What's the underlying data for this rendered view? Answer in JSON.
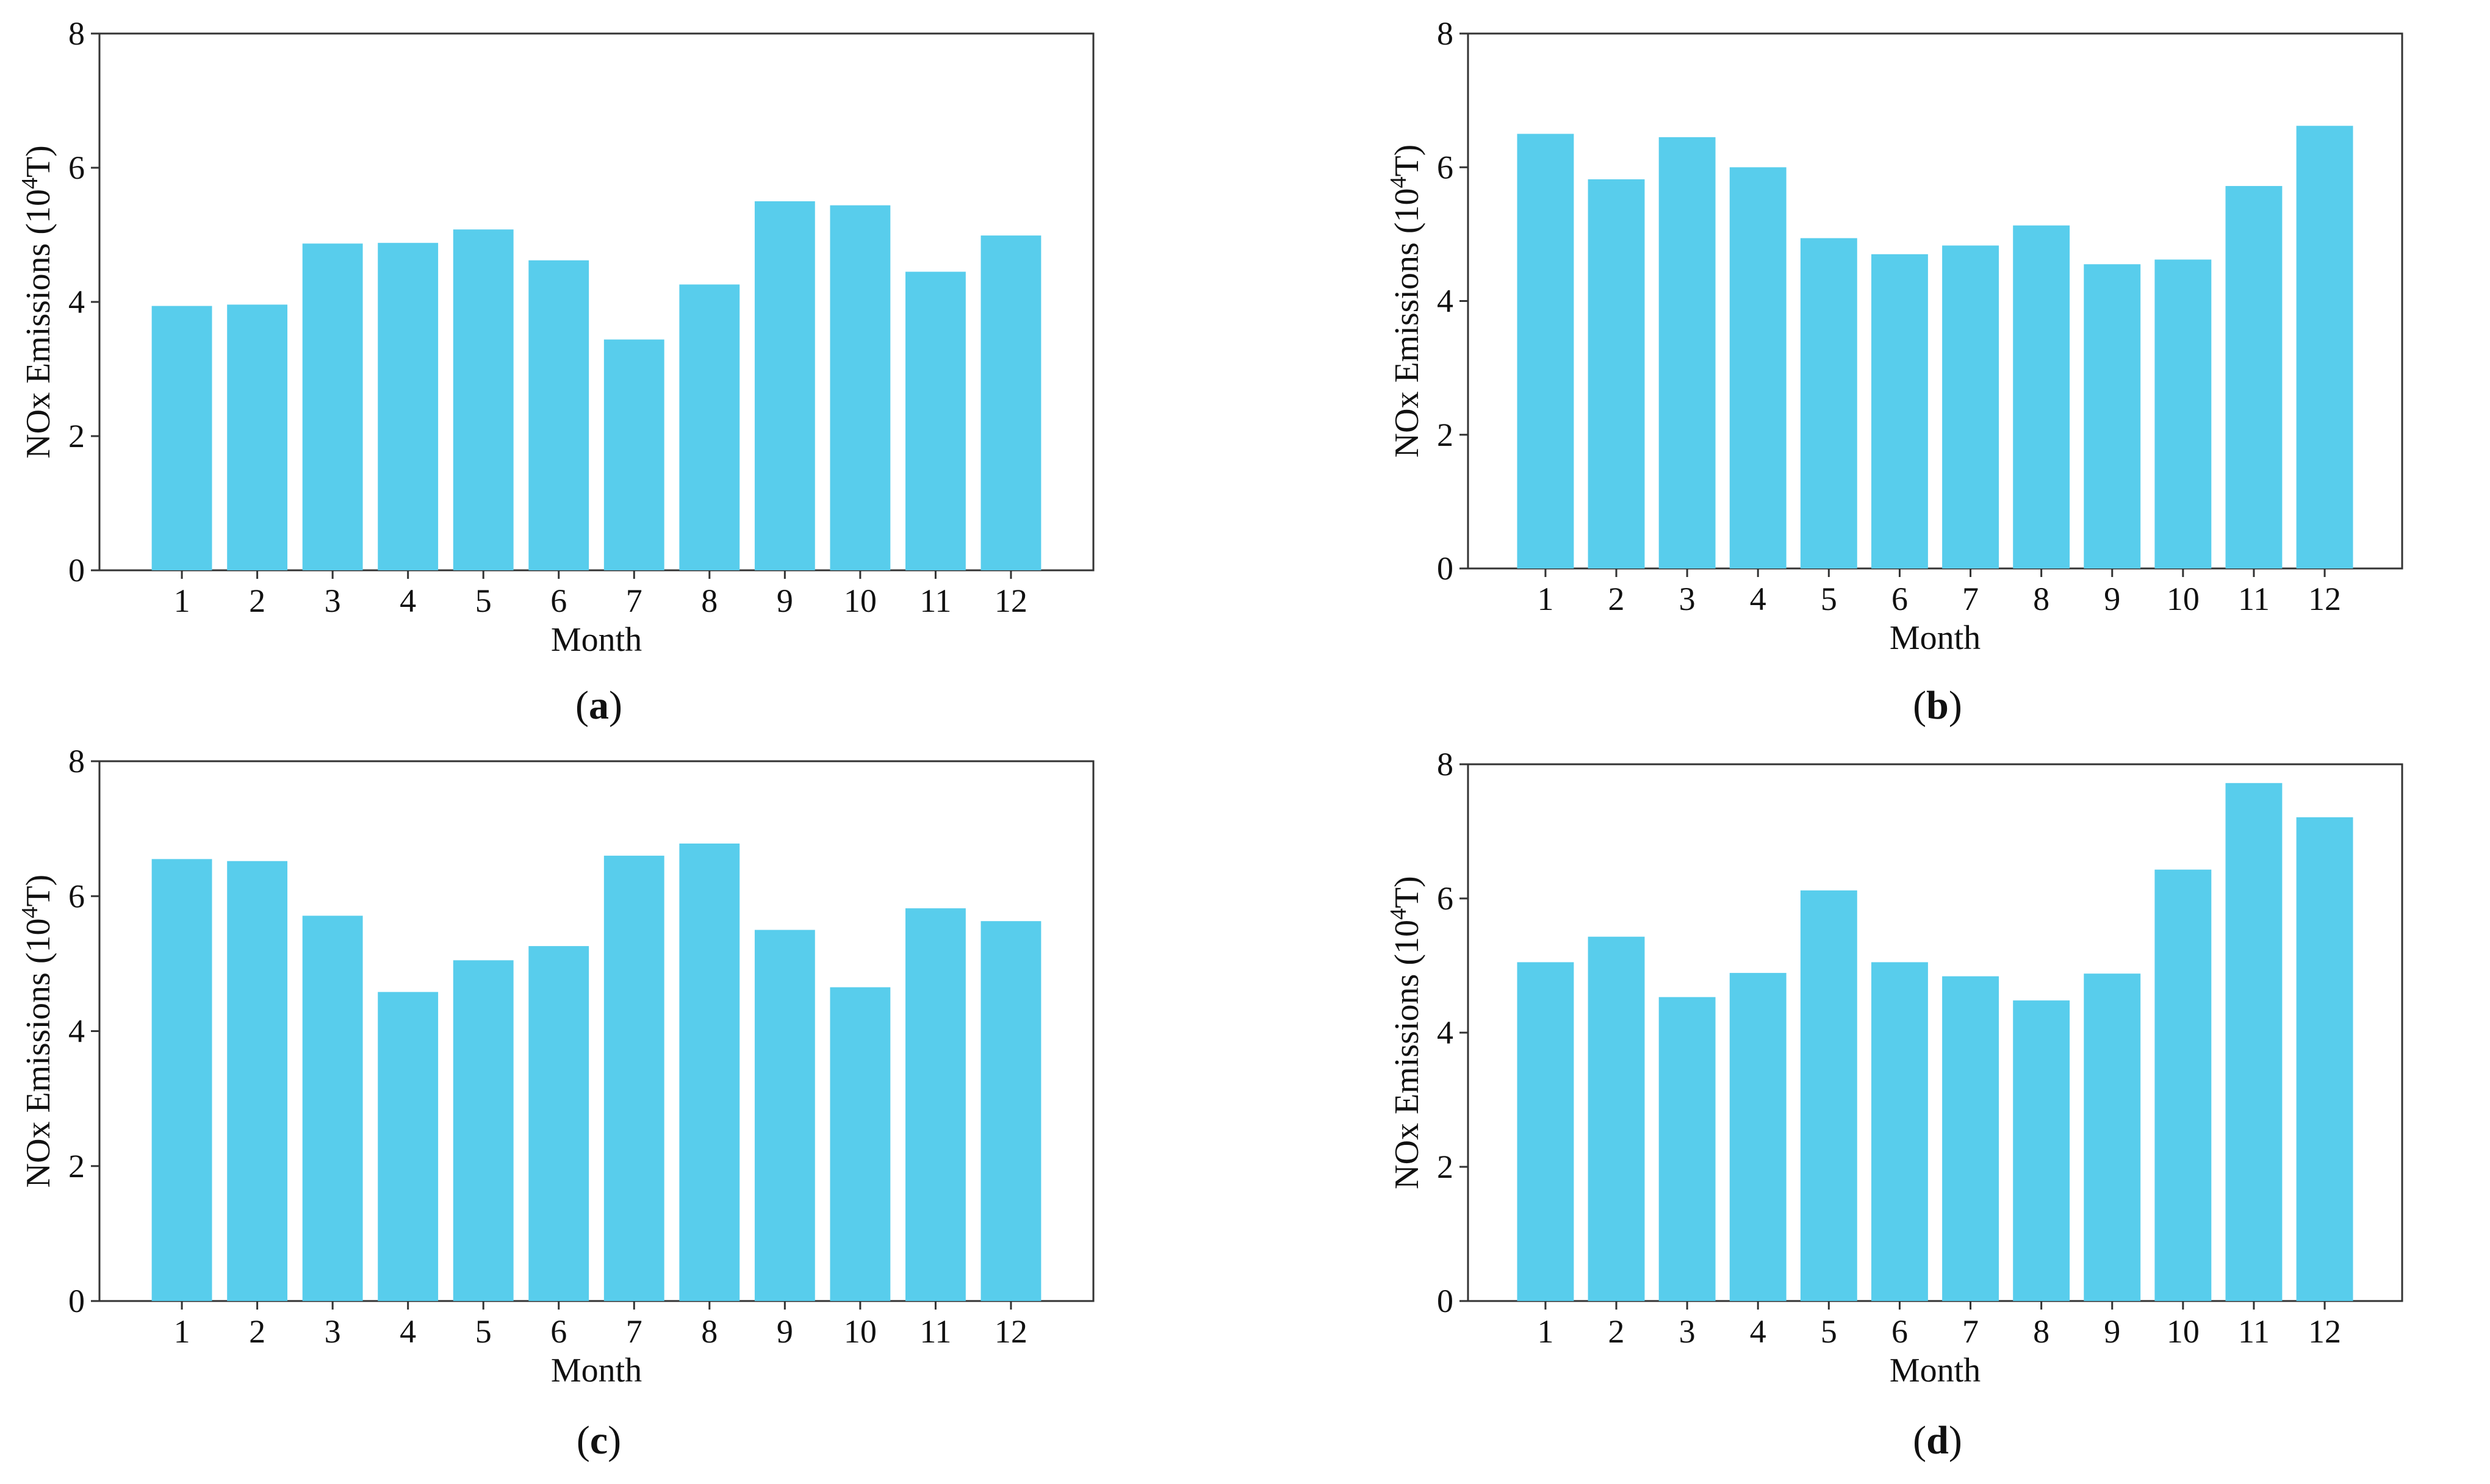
{
  "figure": {
    "bar_color": "#58cdec"
  },
  "chart_data": [
    {
      "type": "bar",
      "label": "a",
      "xlabel": "Month",
      "ylabel_prefix": "NOx Emissions  (10",
      "ylabel_exponent": "4",
      "ylabel_suffix": "T)",
      "ylim": [
        0,
        8
      ],
      "yticks": [
        0,
        2,
        4,
        6,
        8
      ],
      "categories": [
        "1",
        "2",
        "3",
        "4",
        "5",
        "6",
        "7",
        "8",
        "9",
        "10",
        "11",
        "12"
      ],
      "values": [
        3.94,
        3.96,
        4.87,
        4.88,
        5.08,
        4.62,
        3.44,
        4.26,
        5.5,
        5.44,
        4.45,
        4.99
      ]
    },
    {
      "type": "bar",
      "label": "b",
      "xlabel": "Month",
      "ylabel_prefix": "NOx Emissions  (10",
      "ylabel_exponent": "4",
      "ylabel_suffix": "T)",
      "ylim": [
        0,
        8
      ],
      "yticks": [
        0,
        2,
        4,
        6,
        8
      ],
      "categories": [
        "1",
        "2",
        "3",
        "4",
        "5",
        "6",
        "7",
        "8",
        "9",
        "10",
        "11",
        "12"
      ],
      "values": [
        6.5,
        5.82,
        6.45,
        6.0,
        4.94,
        4.7,
        4.83,
        5.13,
        4.55,
        4.62,
        5.72,
        6.62
      ]
    },
    {
      "type": "bar",
      "label": "c",
      "xlabel": "Month",
      "ylabel_prefix": "NOx Emissions  (10",
      "ylabel_exponent": "4",
      "ylabel_suffix": "T)",
      "ylim": [
        0,
        8
      ],
      "yticks": [
        0,
        2,
        4,
        6,
        8
      ],
      "categories": [
        "1",
        "2",
        "3",
        "4",
        "5",
        "6",
        "7",
        "8",
        "9",
        "10",
        "11",
        "12"
      ],
      "values": [
        6.55,
        6.52,
        5.71,
        4.58,
        5.05,
        5.26,
        6.6,
        6.78,
        5.5,
        4.65,
        5.82,
        5.63
      ]
    },
    {
      "type": "bar",
      "label": "d",
      "xlabel": "Month",
      "ylabel_prefix": "NOx Emissions  (10",
      "ylabel_exponent": "4",
      "ylabel_suffix": "T)",
      "ylim": [
        0,
        8
      ],
      "yticks": [
        0,
        2,
        4,
        6,
        8
      ],
      "categories": [
        "1",
        "2",
        "3",
        "4",
        "5",
        "6",
        "7",
        "8",
        "9",
        "10",
        "11",
        "12"
      ],
      "values": [
        5.05,
        5.43,
        4.53,
        4.89,
        6.12,
        5.05,
        4.84,
        4.48,
        4.88,
        6.43,
        7.72,
        7.21
      ]
    }
  ]
}
